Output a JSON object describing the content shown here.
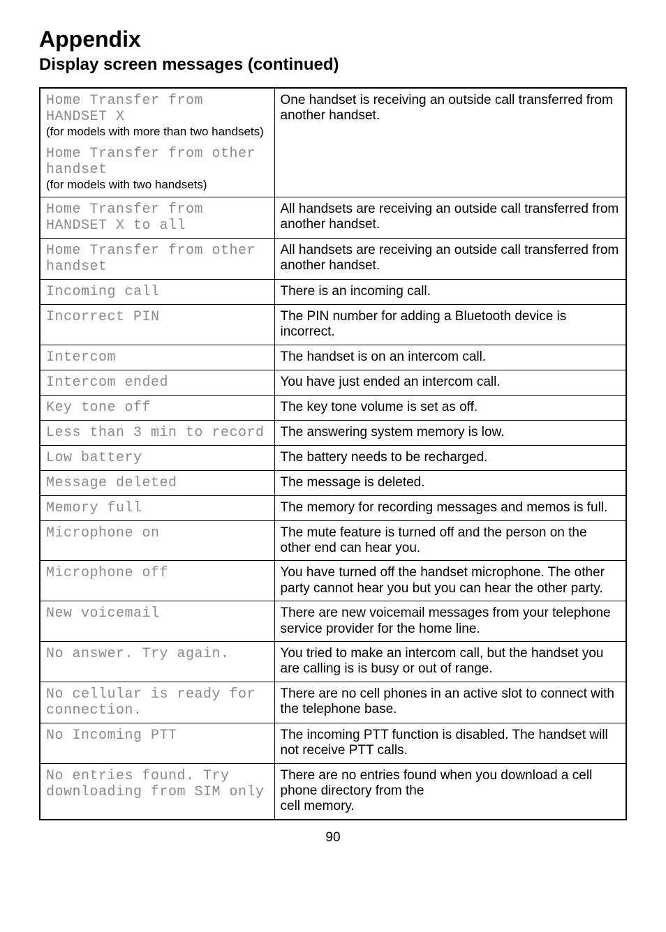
{
  "header": {
    "title": "Appendix",
    "subtitle": "Display screen messages (continued)"
  },
  "rows": [
    {
      "left_blocks": [
        {
          "lcd": "Home Transfer from\nHANDSET X",
          "note": "(for models with more than two handsets)"
        },
        {
          "lcd": "Home Transfer from other\nhandset",
          "note": "(for models with two handsets)"
        }
      ],
      "right": "One handset is receiving an outside call transferred from another handset."
    },
    {
      "left_blocks": [
        {
          "lcd": "Home Transfer from\nHANDSET X to all"
        }
      ],
      "right": "All handsets are receiving an outside call transferred from another handset."
    },
    {
      "left_blocks": [
        {
          "lcd": "Home Transfer from other\nhandset"
        }
      ],
      "right": "All handsets are receiving an outside call transferred from another handset."
    },
    {
      "left_blocks": [
        {
          "lcd": "Incoming call"
        }
      ],
      "right": "There is an incoming call."
    },
    {
      "left_blocks": [
        {
          "lcd": "Incorrect PIN"
        }
      ],
      "right": "The PIN number for adding a Bluetooth device is incorrect."
    },
    {
      "left_blocks": [
        {
          "lcd": "Intercom"
        }
      ],
      "right": "The handset is on an intercom call."
    },
    {
      "left_blocks": [
        {
          "lcd": "Intercom ended"
        }
      ],
      "right": "You have just ended an intercom call."
    },
    {
      "left_blocks": [
        {
          "lcd": "Key tone off"
        }
      ],
      "right": "The key tone volume is set as off."
    },
    {
      "left_blocks": [
        {
          "lcd": "Less than 3 min to record"
        }
      ],
      "right": "The answering system memory is low."
    },
    {
      "left_blocks": [
        {
          "lcd": "Low battery"
        }
      ],
      "right": "The battery needs to be recharged."
    },
    {
      "left_blocks": [
        {
          "lcd": "Message deleted"
        }
      ],
      "right": "The message is deleted."
    },
    {
      "left_blocks": [
        {
          "lcd": "Memory full"
        }
      ],
      "right": "The memory for recording messages and memos is full."
    },
    {
      "left_blocks": [
        {
          "lcd": "Microphone on"
        }
      ],
      "right": "The mute feature is turned off and the person on the other end can hear you."
    },
    {
      "left_blocks": [
        {
          "lcd": "Microphone off"
        }
      ],
      "right": "You have turned off the handset microphone. The other party cannot hear you but you can hear the other party."
    },
    {
      "left_blocks": [
        {
          "lcd": "New voicemail"
        }
      ],
      "right": "There are new voicemail messages from your telephone service provider for the home line."
    },
    {
      "left_blocks": [
        {
          "lcd": "No answer. Try again."
        }
      ],
      "right": "You tried to make an intercom call, but the handset you are calling is is busy or out of range."
    },
    {
      "left_blocks": [
        {
          "lcd": "No cellular is ready for\nconnection."
        }
      ],
      "right": "There are no cell phones in an active slot to connect with the telephone base."
    },
    {
      "left_blocks": [
        {
          "lcd": "No Incoming PTT"
        }
      ],
      "right": "The incoming PTT function is disabled. The handset will not receive PTT calls."
    },
    {
      "left_blocks": [
        {
          "lcd": "No entries found. Try\ndownloading from SIM only"
        }
      ],
      "right": "There are no entries found when you download a cell phone directory from the\ncell memory."
    }
  ],
  "page_number": "90"
}
